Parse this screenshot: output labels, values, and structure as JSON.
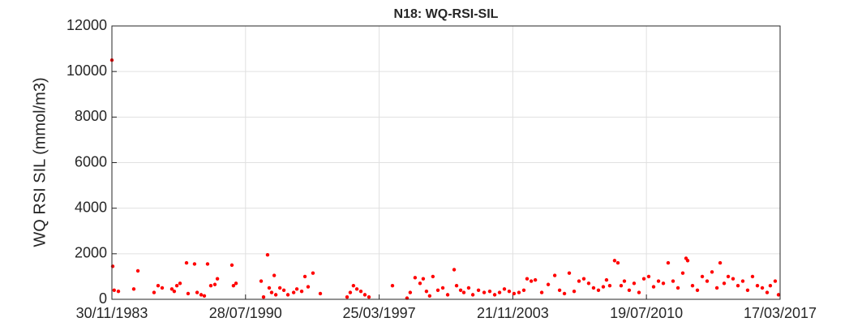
{
  "chart_data": {
    "type": "scatter",
    "title": "N18: WQ-RSI-SIL",
    "y_label": "WQ RSI SIL (mmol/m3)",
    "color": "#ff0000",
    "grid": true,
    "xlim": [
      "1983-11-30",
      "2017-03-17"
    ],
    "xticks": [
      {
        "value": "1983-11-30",
        "label": "30/11/1983"
      },
      {
        "value": "1990-07-28",
        "label": "28/07/1990"
      },
      {
        "value": "1997-03-25",
        "label": "25/03/1997"
      },
      {
        "value": "2003-11-21",
        "label": "21/11/2003"
      },
      {
        "value": "2010-07-19",
        "label": "19/07/2010"
      },
      {
        "value": "2017-03-17",
        "label": "17/03/2017"
      }
    ],
    "ylim": [
      0,
      12000
    ],
    "yticks": [
      0,
      2000,
      4000,
      6000,
      8000,
      10000,
      12000
    ],
    "x": [
      "1983-11-30",
      "1983-12-15",
      "1984-01-10",
      "1984-03-27",
      "1985-01-01",
      "1985-03-17",
      "1986-01-05",
      "1986-03-20",
      "1986-06-02",
      "1986-11-25",
      "1987-01-08",
      "1987-02-24",
      "1987-04-23",
      "1987-08-19",
      "1987-09-17",
      "1988-01-12",
      "1988-02-28",
      "1988-05-11",
      "1988-07-08",
      "1988-09-05",
      "1988-11-03",
      "1989-01-16",
      "1989-03-03",
      "1989-11-22",
      "1989-12-20",
      "1990-02-05",
      "1991-05-08",
      "1991-06-21",
      "1991-09-02",
      "1991-10-02",
      "1991-11-15",
      "1992-01-01",
      "1992-01-30",
      "1992-04-13",
      "1992-06-25",
      "1992-09-06",
      "1992-12-20",
      "1993-02-16",
      "1993-05-15",
      "1993-07-13",
      "1993-09-09",
      "1993-12-06",
      "1994-04-19",
      "1995-08-19",
      "1995-10-16",
      "1995-12-13",
      "1996-02-13",
      "1996-04-26",
      "1996-07-08",
      "1996-09-20",
      "1997-11-22",
      "1998-08-14",
      "1998-10-11",
      "1999-01-08",
      "1999-04-08",
      "1999-06-05",
      "1999-08-03",
      "1999-09-30",
      "1999-11-28",
      "2000-02-27",
      "2000-05-26",
      "2000-08-23",
      "2000-12-19",
      "2001-02-01",
      "2001-04-16",
      "2001-06-13",
      "2001-09-09",
      "2001-11-24",
      "2002-03-07",
      "2002-06-18",
      "2002-09-28",
      "2002-12-27",
      "2003-03-25",
      "2003-06-21",
      "2003-09-17",
      "2003-12-14",
      "2004-03-12",
      "2004-06-09",
      "2004-08-07",
      "2004-10-22",
      "2005-01-04",
      "2005-05-01",
      "2005-08-27",
      "2005-12-24",
      "2006-03-22",
      "2006-06-18",
      "2006-09-14",
      "2006-12-12",
      "2007-03-10",
      "2007-06-06",
      "2007-09-02",
      "2007-11-30",
      "2008-02-27",
      "2008-05-25",
      "2008-07-23",
      "2008-09-20",
      "2008-12-17",
      "2009-02-15",
      "2009-04-15",
      "2009-06-13",
      "2009-09-09",
      "2009-12-07",
      "2010-03-06",
      "2010-06-03",
      "2010-08-30",
      "2010-11-27",
      "2011-02-24",
      "2011-05-23",
      "2011-08-19",
      "2011-11-16",
      "2012-02-13",
      "2012-05-11",
      "2012-07-09",
      "2012-08-08",
      "2012-11-04",
      "2013-02-01",
      "2013-05-01",
      "2013-07-28",
      "2013-10-25",
      "2014-01-22",
      "2014-03-22",
      "2014-06-03",
      "2014-08-16",
      "2014-11-12",
      "2015-02-09",
      "2015-05-08",
      "2015-08-04",
      "2015-11-01",
      "2016-01-29",
      "2016-04-27",
      "2016-07-24",
      "2016-09-20",
      "2016-12-18",
      "2017-02-16"
    ],
    "values": [
      10500,
      1450,
      400,
      350,
      450,
      1250,
      300,
      600,
      500,
      450,
      350,
      600,
      700,
      1600,
      250,
      1550,
      300,
      200,
      150,
      1550,
      600,
      650,
      900,
      1500,
      600,
      700,
      800,
      100,
      1950,
      500,
      300,
      1050,
      200,
      500,
      400,
      200,
      300,
      450,
      350,
      1000,
      550,
      1150,
      250,
      100,
      300,
      600,
      450,
      350,
      200,
      100,
      600,
      50,
      300,
      950,
      700,
      900,
      350,
      150,
      1000,
      400,
      500,
      200,
      1300,
      600,
      400,
      300,
      500,
      200,
      400,
      300,
      350,
      200,
      300,
      450,
      350,
      250,
      300,
      400,
      900,
      800,
      850,
      300,
      650,
      1050,
      400,
      250,
      1150,
      350,
      800,
      900,
      700,
      500,
      400,
      550,
      850,
      600,
      1700,
      1600,
      600,
      800,
      400,
      700,
      300,
      900,
      1000,
      550,
      800,
      700,
      1600,
      800,
      500,
      1150,
      1800,
      1700,
      600,
      400,
      1000,
      800,
      1200,
      500,
      1600,
      700,
      1000,
      900,
      600,
      800,
      400,
      1000,
      600,
      500,
      300,
      600,
      800,
      200
    ]
  }
}
